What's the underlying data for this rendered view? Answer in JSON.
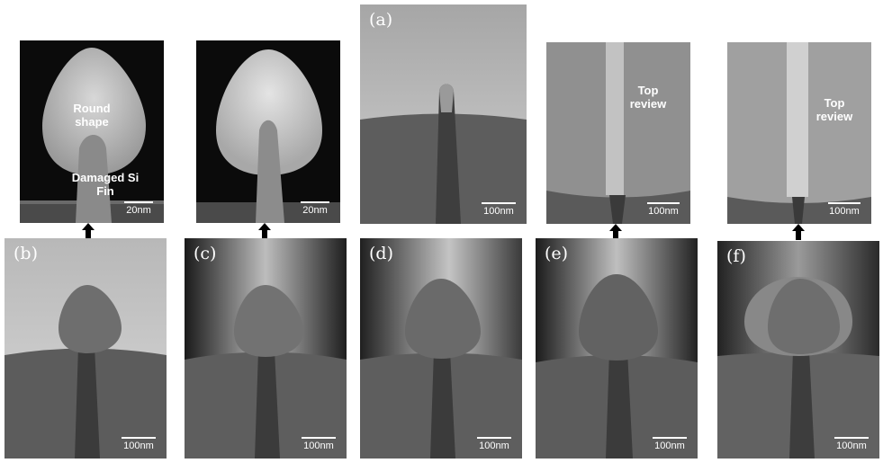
{
  "panels": {
    "a": {
      "label": "(a)",
      "scale": "100nm"
    },
    "b": {
      "label": "(b)",
      "scale": "100nm"
    },
    "c": {
      "label": "(c)",
      "scale": "100nm"
    },
    "d": {
      "label": "(d)",
      "scale": "100nm"
    },
    "e": {
      "label": "(e)",
      "scale": "100nm"
    },
    "f": {
      "label": "(f)",
      "scale": "100nm"
    }
  },
  "insets": {
    "b_zoom": {
      "note_top": "Round shape",
      "note_bottom": "Damaged Si Fin",
      "scale": "20nm"
    },
    "c_zoom": {
      "scale": "20nm"
    },
    "e_top": {
      "note": "Top review",
      "scale": "100nm"
    },
    "f_top": {
      "note": "Top review",
      "scale": "100nm"
    }
  }
}
